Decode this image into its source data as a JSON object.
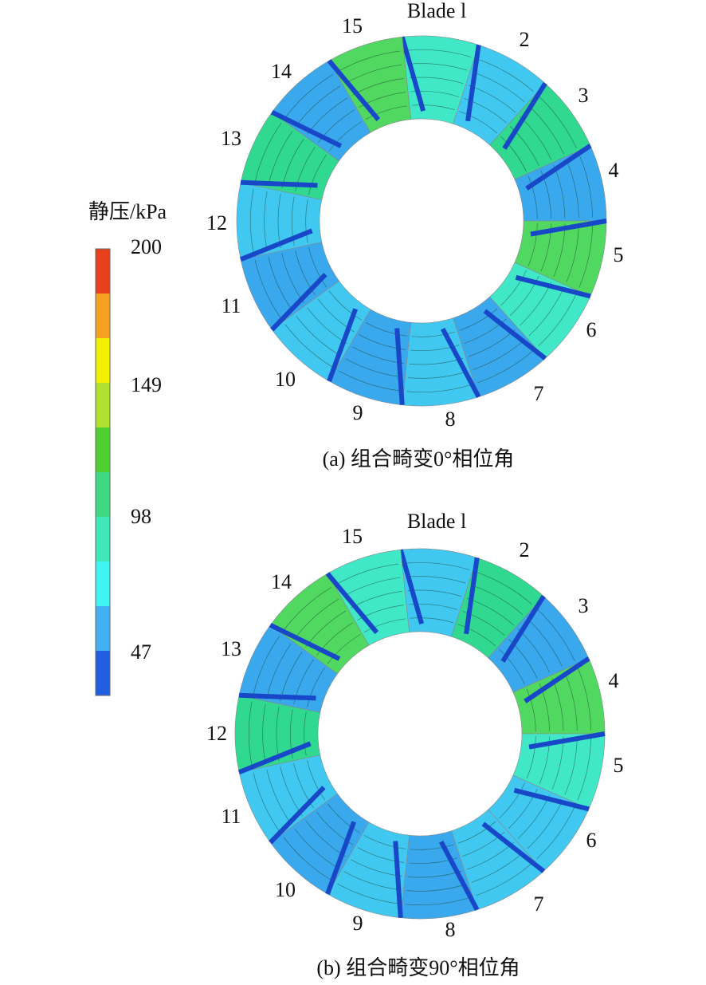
{
  "colorbar": {
    "title": "静压/kPa",
    "ticks": [
      "200",
      "149",
      "98",
      "47"
    ],
    "colors": [
      "#e8401c",
      "#f5a020",
      "#f0f000",
      "#b0e030",
      "#50d030",
      "#40d880",
      "#40e8b8",
      "#40f4f4",
      "#40b0f0",
      "#2060e0"
    ]
  },
  "panels": [
    {
      "caption": "(a) 组合畸变0°相位角",
      "blades": [
        "Blade l",
        "2",
        "3",
        "4",
        "5",
        "6",
        "7",
        "8",
        "9",
        "10",
        "11",
        "12",
        "13",
        "14",
        "15"
      ]
    },
    {
      "caption": "(b) 组合畸变90°相位角",
      "blades": [
        "Blade l",
        "2",
        "3",
        "4",
        "5",
        "6",
        "7",
        "8",
        "9",
        "10",
        "11",
        "12",
        "13",
        "14",
        "15"
      ]
    }
  ]
}
